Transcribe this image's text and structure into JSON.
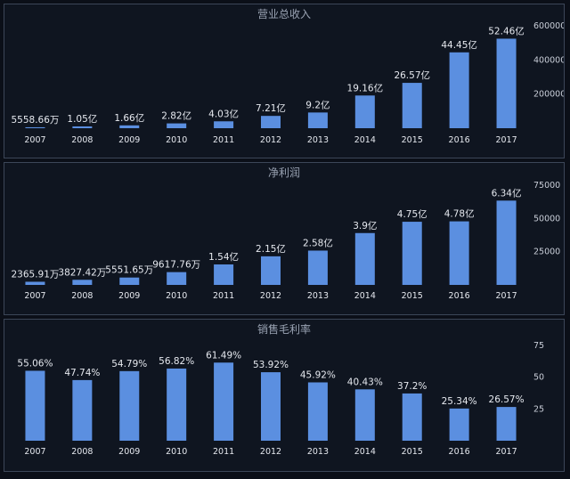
{
  "colors": {
    "bar": "#5b8fe0",
    "background": "#0f1520",
    "border": "#3c4658"
  },
  "chart_data": [
    {
      "type": "bar",
      "title": "营业总收入",
      "categories": [
        "2007",
        "2008",
        "2009",
        "2010",
        "2011",
        "2012",
        "2013",
        "2014",
        "2015",
        "2016",
        "2017"
      ],
      "values": [
        5558.66,
        10500,
        16600,
        28200,
        40300,
        72100,
        92000,
        191600,
        265700,
        444500,
        524600
      ],
      "data_labels": [
        "5558.66万",
        "1.05亿",
        "1.66亿",
        "2.82亿",
        "4.03亿",
        "7.21亿",
        "9.2亿",
        "19.16亿",
        "26.57亿",
        "44.45亿",
        "52.46亿"
      ],
      "yticks": [
        200000,
        400000,
        600000
      ],
      "ytick_labels": [
        "200000",
        "400000",
        "600000"
      ],
      "ylim": [
        0,
        600000
      ],
      "grid": false,
      "xlabel": "",
      "ylabel": ""
    },
    {
      "type": "bar",
      "title": "净利润",
      "categories": [
        "2007",
        "2008",
        "2009",
        "2010",
        "2011",
        "2012",
        "2013",
        "2014",
        "2015",
        "2016",
        "2017"
      ],
      "values": [
        2365.91,
        3827.42,
        5551.65,
        9617.76,
        15400,
        21500,
        25800,
        39000,
        47500,
        47800,
        63400
      ],
      "data_labels": [
        "2365.91万",
        "3827.42万",
        "5551.65万",
        "9617.76万",
        "1.54亿",
        "2.15亿",
        "2.58亿",
        "3.9亿",
        "4.75亿",
        "4.78亿",
        "6.34亿"
      ],
      "yticks": [
        25000,
        50000,
        75000
      ],
      "ytick_labels": [
        "25000",
        "50000",
        "75000"
      ],
      "ylim": [
        0,
        75000
      ],
      "grid": false,
      "xlabel": "",
      "ylabel": ""
    },
    {
      "type": "bar",
      "title": "销售毛利率",
      "categories": [
        "2007",
        "2008",
        "2009",
        "2010",
        "2011",
        "2012",
        "2013",
        "2014",
        "2015",
        "2016",
        "2017"
      ],
      "values": [
        55.06,
        47.74,
        54.79,
        56.82,
        61.49,
        53.92,
        45.92,
        40.43,
        37.2,
        25.34,
        26.57
      ],
      "data_labels": [
        "55.06%",
        "47.74%",
        "54.79%",
        "56.82%",
        "61.49%",
        "53.92%",
        "45.92%",
        "40.43%",
        "37.2%",
        "25.34%",
        "26.57%"
      ],
      "yticks": [
        25,
        50,
        75
      ],
      "ytick_labels": [
        "25",
        "50",
        "75"
      ],
      "ylim": [
        0,
        75
      ],
      "grid": false,
      "xlabel": "",
      "ylabel": ""
    }
  ]
}
